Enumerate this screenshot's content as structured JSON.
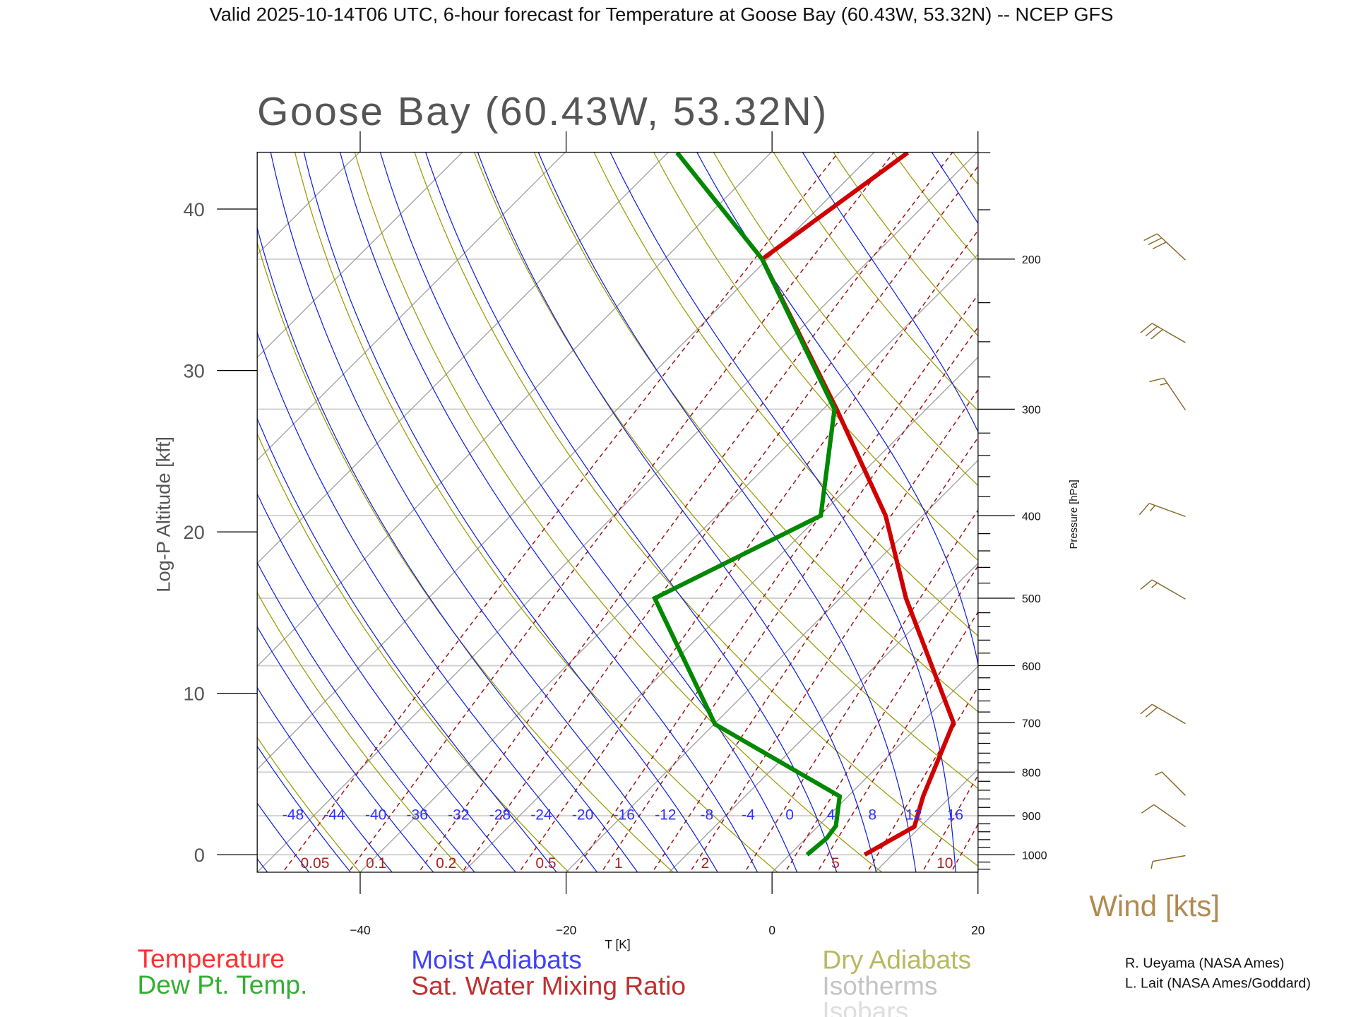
{
  "header": {
    "title": "Valid 2025-10-14T06 UTC, 6-hour forecast for Temperature at Goose Bay (60.43W, 53.32N) -- NCEP GFS"
  },
  "chart_data": {
    "type": "line",
    "subtype": "skew-T log-P diagram",
    "title": "Goose Bay (60.43W, 53.32N)",
    "xlabel": "T [K]",
    "ylabel": "Log-P Altitude [kft]",
    "y2label": "Pressure [hPa]",
    "x_ticks": [
      "-40",
      "-20",
      "0",
      "20"
    ],
    "x_tick_values": [
      -40,
      -20,
      0,
      20
    ],
    "xlim": [
      -50,
      20
    ],
    "y_ticks": [
      "0",
      "10",
      "20",
      "30",
      "40"
    ],
    "y_tick_values_kft": [
      0,
      10,
      20,
      30,
      40
    ],
    "pressure_ticks": [
      "1000",
      "900",
      "800",
      "700",
      "600",
      "500",
      "400",
      "300",
      "200"
    ],
    "pressure_tick_values": [
      1000,
      900,
      800,
      700,
      600,
      500,
      400,
      300,
      200
    ],
    "pressure_range": [
      1048,
      150
    ],
    "series": [
      {
        "name": "Temperature",
        "color": "#d00000",
        "points": [
          {
            "p": 1000,
            "t": 7.3
          },
          {
            "p": 927,
            "t": 9.4
          },
          {
            "p": 854,
            "t": 7.3
          },
          {
            "p": 700,
            "t": 3.1
          },
          {
            "p": 500,
            "t": -13.6
          },
          {
            "p": 400,
            "t": -23.6
          },
          {
            "p": 300,
            "t": -38.7
          },
          {
            "p": 200,
            "t": -60.5
          },
          {
            "p": 150,
            "t": -56.7
          }
        ]
      },
      {
        "name": "Dew Pt. Temp.",
        "color": "#008800",
        "points": [
          {
            "p": 1000,
            "t": 1.7
          },
          {
            "p": 956,
            "t": 2.0
          },
          {
            "p": 925,
            "t": 1.7
          },
          {
            "p": 854,
            "t": -0.8
          },
          {
            "p": 703,
            "t": -19.9
          },
          {
            "p": 500,
            "t": -38.0
          },
          {
            "p": 400,
            "t": -29.9
          },
          {
            "p": 300,
            "t": -38.9
          },
          {
            "p": 200,
            "t": -60.5
          },
          {
            "p": 150,
            "t": -79.1
          }
        ]
      }
    ],
    "moist_adiabat_labels": [
      "-48",
      "-44",
      "-40",
      "-36",
      "-32",
      "-28",
      "-24",
      "-20",
      "-16",
      "-12",
      "-8",
      "-4",
      "0",
      "4",
      "8",
      "12",
      "16"
    ],
    "mixing_ratio_labels": [
      "0.05",
      "0.1",
      "0.2",
      "0.5",
      "1",
      "2",
      "5",
      "10"
    ],
    "wind_barbs": {
      "label": "Wind [kts]",
      "color": "#8a6a2a",
      "levels": [
        {
          "p": 200,
          "speed_kt": 30,
          "dir_deg": 313
        },
        {
          "p": 250,
          "speed_kt": 30,
          "dir_deg": 300
        },
        {
          "p": 300,
          "speed_kt": 15,
          "dir_deg": 326
        },
        {
          "p": 400,
          "speed_kt": 15,
          "dir_deg": 290
        },
        {
          "p": 500,
          "speed_kt": 15,
          "dir_deg": 300
        },
        {
          "p": 700,
          "speed_kt": 20,
          "dir_deg": 300
        },
        {
          "p": 850,
          "speed_kt": 5,
          "dir_deg": 315
        },
        {
          "p": 925,
          "speed_kt": 10,
          "dir_deg": 305
        },
        {
          "p": 1000,
          "speed_kt": 5,
          "dir_deg": 260
        }
      ]
    },
    "grid": true
  },
  "legend": {
    "temperature": "Temperature",
    "dewpoint": "Dew Pt. Temp.",
    "moist": "Moist Adiabats",
    "mixing": "Sat. Water Mixing Ratio",
    "dry": "Dry Adiabats",
    "isotherms": "Isotherms",
    "isobars": "Isobars"
  },
  "credits": [
    "R. Ueyama (NASA Ames)",
    "L. Lait (NASA Ames/Goddard)"
  ]
}
